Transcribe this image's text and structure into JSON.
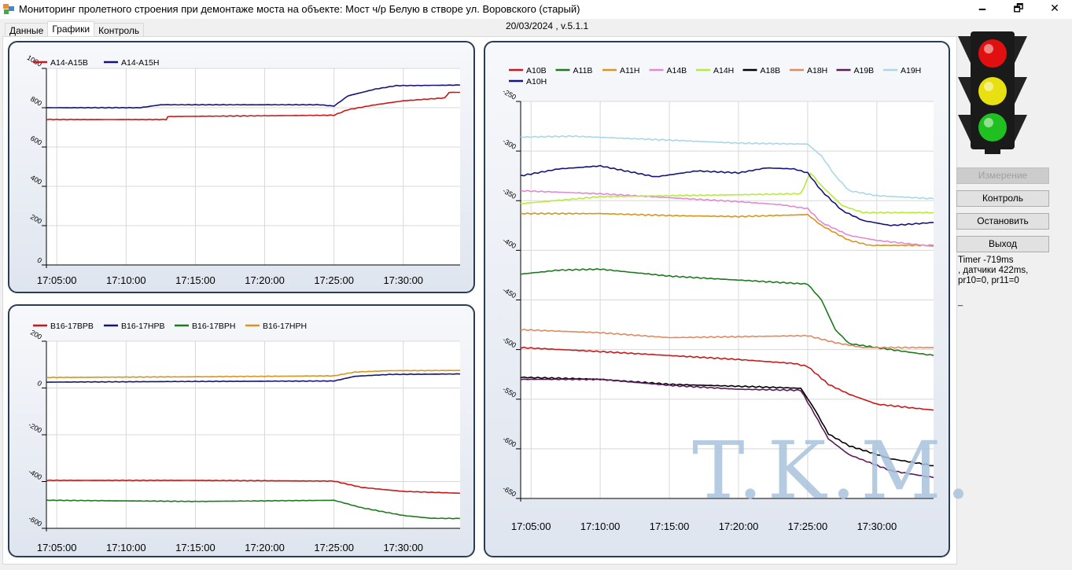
{
  "window": {
    "title": "Мониторинг пролетного строения при демонтаже моста на объекте: Мост ч/р Белую в створе ул. Воровского (старый)",
    "minimize": "🗕",
    "maximize": "🗗",
    "close": "✕"
  },
  "tabs": [
    {
      "label": "Данные"
    },
    {
      "label": "Графики",
      "active": true
    },
    {
      "label": "Контроль"
    }
  ],
  "date_version": "20/03/2024 , v.5.1.1",
  "buttons": {
    "measure": "Измерение",
    "control": "Контроль",
    "stop": "Остановить",
    "exit": "Выход"
  },
  "status": {
    "line1": "Timer -719ms",
    ",line2": "",
    "line2_text": ", датчики 422ms,",
    "line3": "pr10=0, pr11=0",
    "cursor": "_"
  },
  "watermark": "T.K.M.",
  "traffic_light": {
    "red": "#e01010",
    "yellow": "#e8e010",
    "green": "#20c020"
  },
  "chart_data": [
    {
      "type": "line",
      "id": "top-left",
      "ylim": [
        0,
        1000
      ],
      "yticks": [
        0,
        200,
        400,
        600,
        800,
        1000
      ],
      "xlim": [
        4.25,
        34.1
      ],
      "xticks": [
        {
          "x": 5,
          "label": "17:05:00"
        },
        {
          "x": 10,
          "label": "17:10:00"
        },
        {
          "x": 15,
          "label": "17:15:00"
        },
        {
          "x": 20,
          "label": "17:20:00"
        },
        {
          "x": 25,
          "label": "17:25:00"
        },
        {
          "x": 30,
          "label": "17:30:00"
        }
      ],
      "series": [
        {
          "name": "A14-A15B",
          "color": "#c81818",
          "points": [
            [
              4.25,
              740
            ],
            [
              12.9,
              740
            ],
            [
              13,
              755
            ],
            [
              25,
              762
            ],
            [
              26,
              790
            ],
            [
              28,
              815
            ],
            [
              30,
              835
            ],
            [
              33,
              850
            ],
            [
              33.3,
              878
            ],
            [
              34.1,
              878
            ]
          ]
        },
        {
          "name": "A14-A15H",
          "color": "#14147a",
          "points": [
            [
              4.25,
              800
            ],
            [
              11,
              800
            ],
            [
              12.5,
              815
            ],
            [
              24,
              815
            ],
            [
              25,
              808
            ],
            [
              26,
              860
            ],
            [
              28,
              895
            ],
            [
              29.5,
              912
            ],
            [
              34.1,
              915
            ]
          ]
        }
      ]
    },
    {
      "type": "line",
      "id": "bottom-left",
      "ylim": [
        -600,
        200
      ],
      "yticks": [
        -600,
        -400,
        -200,
        0,
        200
      ],
      "xlim": [
        4.25,
        34.1
      ],
      "xticks": [
        {
          "x": 5,
          "label": "17:05:00"
        },
        {
          "x": 10,
          "label": "17:10:00"
        },
        {
          "x": 15,
          "label": "17:15:00"
        },
        {
          "x": 20,
          "label": "17:20:00"
        },
        {
          "x": 25,
          "label": "17:25:00"
        },
        {
          "x": 30,
          "label": "17:30:00"
        }
      ],
      "series": [
        {
          "name": "B16-17BPB",
          "color": "#c81818",
          "points": [
            [
              4.25,
              -395
            ],
            [
              15,
              -395
            ],
            [
              25,
              -398
            ],
            [
              27,
              -425
            ],
            [
              30,
              -442
            ],
            [
              34.1,
              -450
            ]
          ]
        },
        {
          "name": "B16-17HPB",
          "color": "#14147a",
          "points": [
            [
              4.25,
              25
            ],
            [
              15,
              28
            ],
            [
              25,
              30
            ],
            [
              26.5,
              50
            ],
            [
              29,
              58
            ],
            [
              34.1,
              60
            ]
          ]
        },
        {
          "name": "B16-17BPH",
          "color": "#1e7a1e",
          "points": [
            [
              4.25,
              -480
            ],
            [
              15,
              -485
            ],
            [
              25,
              -480
            ],
            [
              27,
              -512
            ],
            [
              30,
              -545
            ],
            [
              32,
              -557
            ],
            [
              34.1,
              -558
            ]
          ]
        },
        {
          "name": "B16-17HPH",
          "color": "#d9951c",
          "points": [
            [
              4.25,
              45
            ],
            [
              15,
              48
            ],
            [
              25,
              52
            ],
            [
              26.5,
              68
            ],
            [
              29,
              74
            ],
            [
              34.1,
              75
            ]
          ]
        }
      ]
    },
    {
      "type": "line",
      "id": "right",
      "ylim": [
        -650,
        -250
      ],
      "yticks": [
        -650,
        -600,
        -550,
        -500,
        -450,
        -400,
        -350,
        -300,
        -250
      ],
      "xlim": [
        4.25,
        34.1
      ],
      "xticks": [
        {
          "x": 5,
          "label": "17:05:00"
        },
        {
          "x": 10,
          "label": "17:10:00"
        },
        {
          "x": 15,
          "label": "17:15:00"
        },
        {
          "x": 20,
          "label": "17:20:00"
        },
        {
          "x": 25,
          "label": "17:25:00"
        },
        {
          "x": 30,
          "label": "17:30:00"
        }
      ],
      "series": [
        {
          "name": "A10B",
          "color": "#c81818",
          "points": [
            [
              4.25,
              -498
            ],
            [
              10,
              -502
            ],
            [
              15,
              -506
            ],
            [
              20,
              -510
            ],
            [
              24,
              -514
            ],
            [
              25,
              -517
            ],
            [
              26.5,
              -535
            ],
            [
              28,
              -545
            ],
            [
              30,
              -555
            ],
            [
              34.1,
              -561
            ]
          ]
        },
        {
          "name": "A11B",
          "color": "#1e7a1e",
          "points": [
            [
              4.25,
              -424
            ],
            [
              7,
              -420
            ],
            [
              10,
              -419
            ],
            [
              15,
              -426
            ],
            [
              20,
              -430
            ],
            [
              25,
              -434
            ],
            [
              26,
              -450
            ],
            [
              27,
              -480
            ],
            [
              28,
              -494
            ],
            [
              31,
              -500
            ],
            [
              34.1,
              -506
            ]
          ]
        },
        {
          "name": "A11H",
          "color": "#d9951c",
          "points": [
            [
              4.25,
              -363
            ],
            [
              10,
              -363
            ],
            [
              15,
              -365
            ],
            [
              20,
              -366
            ],
            [
              25,
              -364
            ],
            [
              26,
              -375
            ],
            [
              28,
              -390
            ],
            [
              29.5,
              -395
            ],
            [
              34.1,
              -395
            ]
          ]
        },
        {
          "name": "A14B",
          "color": "#e08ad0",
          "points": [
            [
              4.25,
              -340
            ],
            [
              10,
              -343
            ],
            [
              15,
              -347
            ],
            [
              20,
              -351
            ],
            [
              23,
              -354
            ],
            [
              25,
              -358
            ],
            [
              26,
              -372
            ],
            [
              28,
              -385
            ],
            [
              30,
              -390
            ],
            [
              34.1,
              -396
            ]
          ]
        },
        {
          "name": "A14H",
          "color": "#b8ea3c",
          "points": [
            [
              4.25,
              -353
            ],
            [
              10,
              -346
            ],
            [
              15,
              -345
            ],
            [
              20,
              -344
            ],
            [
              24.5,
              -343
            ],
            [
              25.2,
              -322
            ],
            [
              26,
              -335
            ],
            [
              27.5,
              -355
            ],
            [
              29,
              -362
            ],
            [
              34.1,
              -362
            ]
          ]
        },
        {
          "name": "A18B",
          "color": "#000000",
          "points": [
            [
              4.25,
              -528
            ],
            [
              10,
              -530
            ],
            [
              15,
              -535
            ],
            [
              20,
              -537
            ],
            [
              24.5,
              -539
            ],
            [
              25.5,
              -560
            ],
            [
              26.5,
              -585
            ],
            [
              28,
              -597
            ],
            [
              31,
              -610
            ],
            [
              34.1,
              -617
            ]
          ]
        },
        {
          "name": "A18H",
          "color": "#e08a60",
          "points": [
            [
              4.25,
              -480
            ],
            [
              10,
              -483
            ],
            [
              15,
              -488
            ],
            [
              20,
              -487
            ],
            [
              25,
              -486
            ],
            [
              27,
              -493
            ],
            [
              29,
              -498
            ],
            [
              34.1,
              -498
            ]
          ]
        },
        {
          "name": "A19B",
          "color": "#5a1a5a",
          "points": [
            [
              4.25,
              -530
            ],
            [
              10,
              -530
            ],
            [
              15,
              -536
            ],
            [
              20,
              -540
            ],
            [
              24.5,
              -541
            ],
            [
              25.5,
              -565
            ],
            [
              26.5,
              -590
            ],
            [
              28,
              -606
            ],
            [
              31,
              -622
            ],
            [
              34.1,
              -629
            ]
          ]
        },
        {
          "name": "A19H",
          "color": "#a8d8e8",
          "points": [
            [
              4.25,
              -286
            ],
            [
              8,
              -285
            ],
            [
              15,
              -289
            ],
            [
              20,
              -292
            ],
            [
              25,
              -293
            ],
            [
              26,
              -305
            ],
            [
              27,
              -325
            ],
            [
              28,
              -340
            ],
            [
              30,
              -345
            ],
            [
              34.1,
              -348
            ]
          ]
        },
        {
          "name": "A10H",
          "color": "#14147a",
          "points": [
            [
              4.25,
              -325
            ],
            [
              7,
              -318
            ],
            [
              10,
              -315
            ],
            [
              14,
              -326
            ],
            [
              17,
              -320
            ],
            [
              20,
              -322
            ],
            [
              22,
              -317
            ],
            [
              24,
              -318
            ],
            [
              25,
              -322
            ],
            [
              26,
              -340
            ],
            [
              27.5,
              -360
            ],
            [
              29,
              -370
            ],
            [
              31,
              -375
            ],
            [
              34.1,
              -372
            ]
          ]
        }
      ]
    }
  ]
}
